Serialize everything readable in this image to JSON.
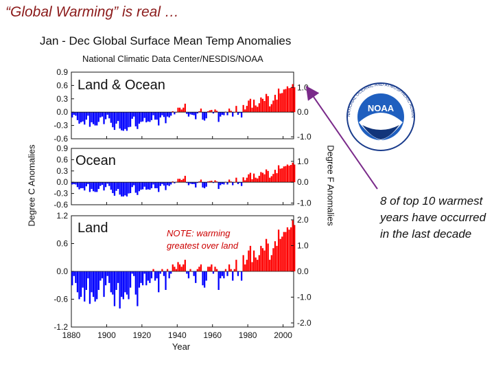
{
  "slide": {
    "title": "“Global Warming” is real …",
    "callout": "8 of top 10 warmest years have occurred in the last decade",
    "note": "NOTE: warming greatest over land",
    "logo_text": "NOAA",
    "logo_ring_text": "NATIONAL OCEANIC AND ATMOSPHERIC ADMINISTRATION · U.S. DEPARTMENT OF COMMERCE"
  },
  "colors": {
    "warm": "#ff0000",
    "cool": "#0000ff",
    "title": "#8b1a1a",
    "arrow": "#7a2a8a",
    "note": "#cc0000"
  },
  "chart_data": [
    {
      "type": "bar",
      "panel_label": "Land & Ocean",
      "title": "Jan - Dec Global Surface Mean Temp Anomalies",
      "subtitle": "National Climatic Data Center/NESDIS/NOAA",
      "xlabel": "Year",
      "ylabel": "Degree C Anomalies",
      "ylabel_right": "Degree F Anomalies",
      "xlim": [
        1880,
        2006
      ],
      "ylim": [
        -0.6,
        0.9
      ],
      "yticks": [
        "0.9",
        "0.6",
        "0.3",
        "0.0",
        "-0.3",
        "-0.6"
      ],
      "yticks_right": [
        "1.0",
        "0.0",
        "-1.0"
      ],
      "series_start_year": 1880,
      "values": [
        -0.12,
        -0.06,
        -0.08,
        -0.18,
        -0.26,
        -0.23,
        -0.21,
        -0.28,
        -0.17,
        -0.08,
        -0.33,
        -0.23,
        -0.27,
        -0.3,
        -0.3,
        -0.22,
        -0.12,
        -0.1,
        -0.27,
        -0.16,
        -0.06,
        -0.14,
        -0.24,
        -0.34,
        -0.4,
        -0.26,
        -0.2,
        -0.37,
        -0.41,
        -0.42,
        -0.38,
        -0.42,
        -0.34,
        -0.33,
        -0.15,
        -0.1,
        -0.32,
        -0.38,
        -0.26,
        -0.22,
        -0.21,
        -0.13,
        -0.23,
        -0.21,
        -0.22,
        -0.18,
        -0.07,
        -0.17,
        -0.17,
        -0.3,
        -0.12,
        -0.07,
        -0.11,
        -0.25,
        -0.1,
        -0.12,
        -0.08,
        0.02,
        -0.05,
        0.0,
        0.1,
        0.1,
        0.06,
        0.1,
        0.19,
        -0.04,
        -0.1,
        -0.05,
        -0.06,
        -0.07,
        -0.16,
        -0.03,
        0.02,
        0.08,
        -0.17,
        -0.19,
        -0.14,
        0.02,
        0.04,
        0.05,
        -0.03,
        0.06,
        0.03,
        -0.22,
        -0.1,
        -0.06,
        -0.07,
        0.01,
        -0.07,
        0.08,
        0.03,
        -0.1,
        0.0,
        0.14,
        -0.06,
        -0.02,
        -0.12,
        0.16,
        0.06,
        0.14,
        0.26,
        0.3,
        0.1,
        0.28,
        0.15,
        0.12,
        0.2,
        0.33,
        0.3,
        0.25,
        0.41,
        0.36,
        0.13,
        0.18,
        0.26,
        0.39,
        0.28,
        0.53,
        0.42,
        0.43,
        0.51,
        0.52,
        0.58,
        0.54,
        0.55,
        0.63,
        0.56
      ]
    },
    {
      "type": "bar",
      "panel_label": "Ocean",
      "ylim": [
        -0.6,
        0.9
      ],
      "yticks": [
        "0.9",
        "0.6",
        "0.3",
        "0.0",
        "-0.3",
        "-0.6"
      ],
      "yticks_right": [
        "1.0",
        "0.0",
        "-1.0"
      ],
      "series_start_year": 1880,
      "values": [
        -0.06,
        -0.05,
        -0.06,
        -0.13,
        -0.19,
        -0.16,
        -0.16,
        -0.22,
        -0.11,
        -0.05,
        -0.26,
        -0.18,
        -0.24,
        -0.26,
        -0.26,
        -0.18,
        -0.1,
        -0.07,
        -0.22,
        -0.13,
        -0.04,
        -0.1,
        -0.2,
        -0.29,
        -0.36,
        -0.23,
        -0.18,
        -0.33,
        -0.38,
        -0.38,
        -0.35,
        -0.38,
        -0.3,
        -0.29,
        -0.13,
        -0.08,
        -0.28,
        -0.34,
        -0.24,
        -0.2,
        -0.19,
        -0.12,
        -0.2,
        -0.19,
        -0.2,
        -0.16,
        -0.06,
        -0.16,
        -0.16,
        -0.26,
        -0.1,
        -0.05,
        -0.09,
        -0.21,
        -0.08,
        -0.1,
        -0.06,
        0.02,
        -0.03,
        0.01,
        0.09,
        0.09,
        0.06,
        0.09,
        0.17,
        -0.02,
        -0.08,
        -0.04,
        -0.05,
        -0.05,
        -0.14,
        -0.02,
        0.02,
        0.07,
        -0.14,
        -0.16,
        -0.12,
        0.02,
        0.03,
        0.04,
        -0.02,
        0.05,
        0.02,
        -0.18,
        -0.08,
        -0.05,
        -0.06,
        0.01,
        -0.06,
        0.07,
        0.02,
        -0.08,
        0.0,
        0.12,
        -0.05,
        -0.02,
        -0.1,
        0.13,
        0.05,
        0.12,
        0.21,
        0.25,
        0.08,
        0.23,
        0.12,
        0.1,
        0.17,
        0.27,
        0.25,
        0.21,
        0.34,
        0.3,
        0.12,
        0.16,
        0.22,
        0.33,
        0.24,
        0.45,
        0.36,
        0.37,
        0.42,
        0.43,
        0.47,
        0.44,
        0.46,
        0.52,
        0.47
      ]
    },
    {
      "type": "bar",
      "panel_label": "Land",
      "ylim": [
        -1.2,
        1.2
      ],
      "yticks": [
        "1.2",
        "0.6",
        "0.0",
        "-0.6",
        "-1.2"
      ],
      "yticks_right": [
        "2.0",
        "1.0",
        "0.0",
        "-1.0",
        "-2.0"
      ],
      "xticks": [
        "1880",
        "1900",
        "1920",
        "1940",
        "1960",
        "1980",
        "2000"
      ],
      "series_start_year": 1880,
      "values": [
        -0.3,
        -0.1,
        -0.25,
        -0.45,
        -0.6,
        -0.55,
        -0.35,
        -0.65,
        -0.4,
        -0.15,
        -0.7,
        -0.45,
        -0.55,
        -0.65,
        -0.6,
        -0.4,
        -0.2,
        -0.15,
        -0.55,
        -0.3,
        -0.1,
        -0.25,
        -0.45,
        -0.5,
        -0.75,
        -0.4,
        -0.25,
        -0.8,
        -0.55,
        -0.6,
        -0.45,
        -0.5,
        -0.6,
        -0.35,
        -0.05,
        -0.1,
        -0.5,
        -0.75,
        -0.35,
        -0.25,
        -0.3,
        -0.05,
        -0.3,
        -0.2,
        -0.25,
        -0.15,
        0.05,
        -0.2,
        -0.15,
        -0.45,
        -0.05,
        0.05,
        -0.1,
        -0.4,
        0.05,
        -0.15,
        -0.05,
        0.15,
        0.1,
        0.05,
        0.2,
        0.15,
        0.1,
        0.15,
        0.25,
        -0.05,
        -0.15,
        0.05,
        0.0,
        -0.1,
        -0.25,
        0.05,
        0.1,
        0.15,
        -0.3,
        -0.35,
        -0.2,
        0.1,
        0.1,
        0.15,
        -0.05,
        0.1,
        0.05,
        -0.4,
        -0.15,
        -0.1,
        -0.15,
        0.05,
        -0.1,
        0.15,
        0.05,
        -0.2,
        0.05,
        0.25,
        -0.1,
        0.0,
        -0.2,
        0.35,
        0.15,
        0.25,
        0.45,
        0.55,
        0.2,
        0.45,
        0.3,
        0.25,
        0.35,
        0.55,
        0.5,
        0.45,
        0.7,
        0.6,
        0.25,
        0.35,
        0.5,
        0.65,
        0.55,
        0.9,
        0.7,
        0.75,
        0.85,
        0.85,
        0.95,
        0.9,
        0.95,
        1.1,
        1.0
      ]
    }
  ]
}
